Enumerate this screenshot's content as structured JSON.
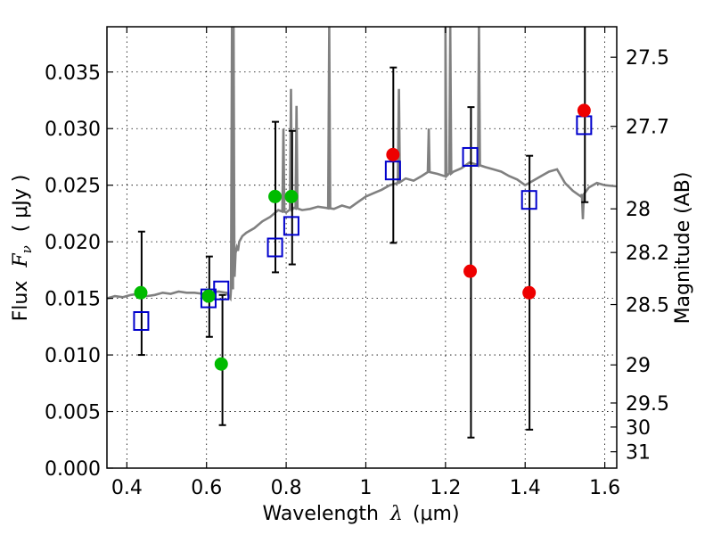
{
  "chart_data": {
    "type": "scatter",
    "xlabel_prefix": "Wavelength",
    "xlabel_symbol": "λ",
    "xlabel_unit": "(μm)",
    "ylabel_prefix": "Flux",
    "ylabel_symbol": "F",
    "ylabel_sub": "ν",
    "ylabel_unit": "( μJy )",
    "y2label": "Magnitude (AB)",
    "xlim": [
      0.35,
      1.63
    ],
    "ylim": [
      0.0,
      0.039
    ],
    "xticks": [
      0.4,
      0.6,
      0.8,
      1.0,
      1.2,
      1.4,
      1.6
    ],
    "xtick_labels": [
      "0.4",
      "0.6",
      "0.8",
      "1",
      "1.2",
      "1.4",
      "1.6"
    ],
    "yticks": [
      0.0,
      0.005,
      0.01,
      0.015,
      0.02,
      0.025,
      0.03,
      0.035
    ],
    "ytick_labels": [
      "0.000",
      "0.005",
      "0.010",
      "0.015",
      "0.020",
      "0.025",
      "0.030",
      "0.035"
    ],
    "mag_ticks": [
      27.5,
      27.7,
      28,
      28.2,
      28.5,
      29,
      29.5,
      30,
      31
    ],
    "mag_tick_labels": [
      "27.5",
      "27.7",
      "28",
      "28.2",
      "28.5",
      "29",
      "29.5",
      "30",
      "31"
    ],
    "grid": true,
    "colors": {
      "spectrum": "#808080",
      "green_points": "#00bb00",
      "red_points": "#ee0000",
      "model_boxes": "#0000cc",
      "errorbars": "#000000"
    },
    "spectrum": {
      "name": "",
      "x": [
        0.35,
        0.37,
        0.39,
        0.41,
        0.43,
        0.45,
        0.47,
        0.49,
        0.51,
        0.53,
        0.55,
        0.57,
        0.59,
        0.61,
        0.63,
        0.65,
        0.66,
        0.665,
        0.67,
        0.673,
        0.676,
        0.679,
        0.682,
        0.69,
        0.7,
        0.72,
        0.74,
        0.76,
        0.78,
        0.8,
        0.82,
        0.84,
        0.86,
        0.88,
        0.9,
        0.92,
        0.94,
        0.96,
        0.98,
        1.0,
        1.02,
        1.04,
        1.06,
        1.08,
        1.1,
        1.12,
        1.14,
        1.16,
        1.18,
        1.2,
        1.22,
        1.24,
        1.26,
        1.28,
        1.3,
        1.32,
        1.34,
        1.36,
        1.38,
        1.4,
        1.42,
        1.44,
        1.46,
        1.48,
        1.5,
        1.52,
        1.54,
        1.56,
        1.58,
        1.6,
        1.63
      ],
      "y": [
        0.015,
        0.0152,
        0.0151,
        0.0153,
        0.0154,
        0.0152,
        0.0153,
        0.0155,
        0.0154,
        0.0156,
        0.0155,
        0.0155,
        0.0154,
        0.0155,
        0.0156,
        0.0155,
        0.015,
        0.016,
        0.0175,
        0.019,
        0.0195,
        0.0192,
        0.02,
        0.0205,
        0.0208,
        0.0212,
        0.0218,
        0.0222,
        0.0228,
        0.0226,
        0.023,
        0.0228,
        0.0229,
        0.0231,
        0.023,
        0.0229,
        0.0232,
        0.023,
        0.0235,
        0.024,
        0.0243,
        0.0246,
        0.025,
        0.0252,
        0.0256,
        0.0254,
        0.0258,
        0.0262,
        0.026,
        0.0258,
        0.0262,
        0.0265,
        0.027,
        0.0268,
        0.0266,
        0.0264,
        0.0262,
        0.0258,
        0.0255,
        0.025,
        0.0254,
        0.0258,
        0.0262,
        0.0264,
        0.0252,
        0.0245,
        0.024,
        0.0248,
        0.0252,
        0.025,
        0.0249
      ]
    },
    "emission_lines": [
      {
        "x": 0.664,
        "peak": 0.039
      },
      {
        "x": 0.668,
        "peak": 0.039
      },
      {
        "x": 0.793,
        "peak": 0.03
      },
      {
        "x": 0.812,
        "peak": 0.0335
      },
      {
        "x": 0.826,
        "peak": 0.032
      },
      {
        "x": 0.908,
        "peak": 0.039
      },
      {
        "x": 1.083,
        "peak": 0.0335
      },
      {
        "x": 1.158,
        "peak": 0.03
      },
      {
        "x": 1.2,
        "peak": 0.039
      },
      {
        "x": 1.212,
        "peak": 0.039
      },
      {
        "x": 1.284,
        "peak": 0.039
      },
      {
        "x": 1.545,
        "peak": 0.022
      }
    ],
    "green_points": {
      "name": "",
      "x": [
        0.435,
        0.605,
        0.637,
        0.772,
        0.813
      ],
      "y": [
        0.0155,
        0.0152,
        0.0092,
        0.024,
        0.024
      ]
    },
    "red_points": {
      "name": "",
      "x": [
        1.068,
        1.262,
        1.41,
        1.548
      ],
      "y": [
        0.0277,
        0.0174,
        0.0155,
        0.0316
      ]
    },
    "model_boxes": {
      "name": "",
      "x": [
        0.436,
        0.605,
        0.637,
        0.772,
        0.813,
        1.068,
        1.262,
        1.41,
        1.548
      ],
      "y": [
        0.013,
        0.015,
        0.0157,
        0.0195,
        0.0214,
        0.0263,
        0.0275,
        0.0237,
        0.0303
      ]
    },
    "errorbars": [
      {
        "x": 0.437,
        "low": 0.01,
        "high": 0.0209
      },
      {
        "x": 0.607,
        "low": 0.0116,
        "high": 0.0187
      },
      {
        "x": 0.64,
        "low": 0.0038,
        "high": 0.0153
      },
      {
        "x": 0.773,
        "low": 0.0173,
        "high": 0.0306
      },
      {
        "x": 0.815,
        "low": 0.018,
        "high": 0.0298
      },
      {
        "x": 1.069,
        "low": 0.0199,
        "high": 0.0354
      },
      {
        "x": 1.264,
        "low": 0.0027,
        "high": 0.0319
      },
      {
        "x": 1.411,
        "low": 0.0034,
        "high": 0.0276
      },
      {
        "x": 1.55,
        "low": 0.0235,
        "high": 0.039
      }
    ]
  }
}
